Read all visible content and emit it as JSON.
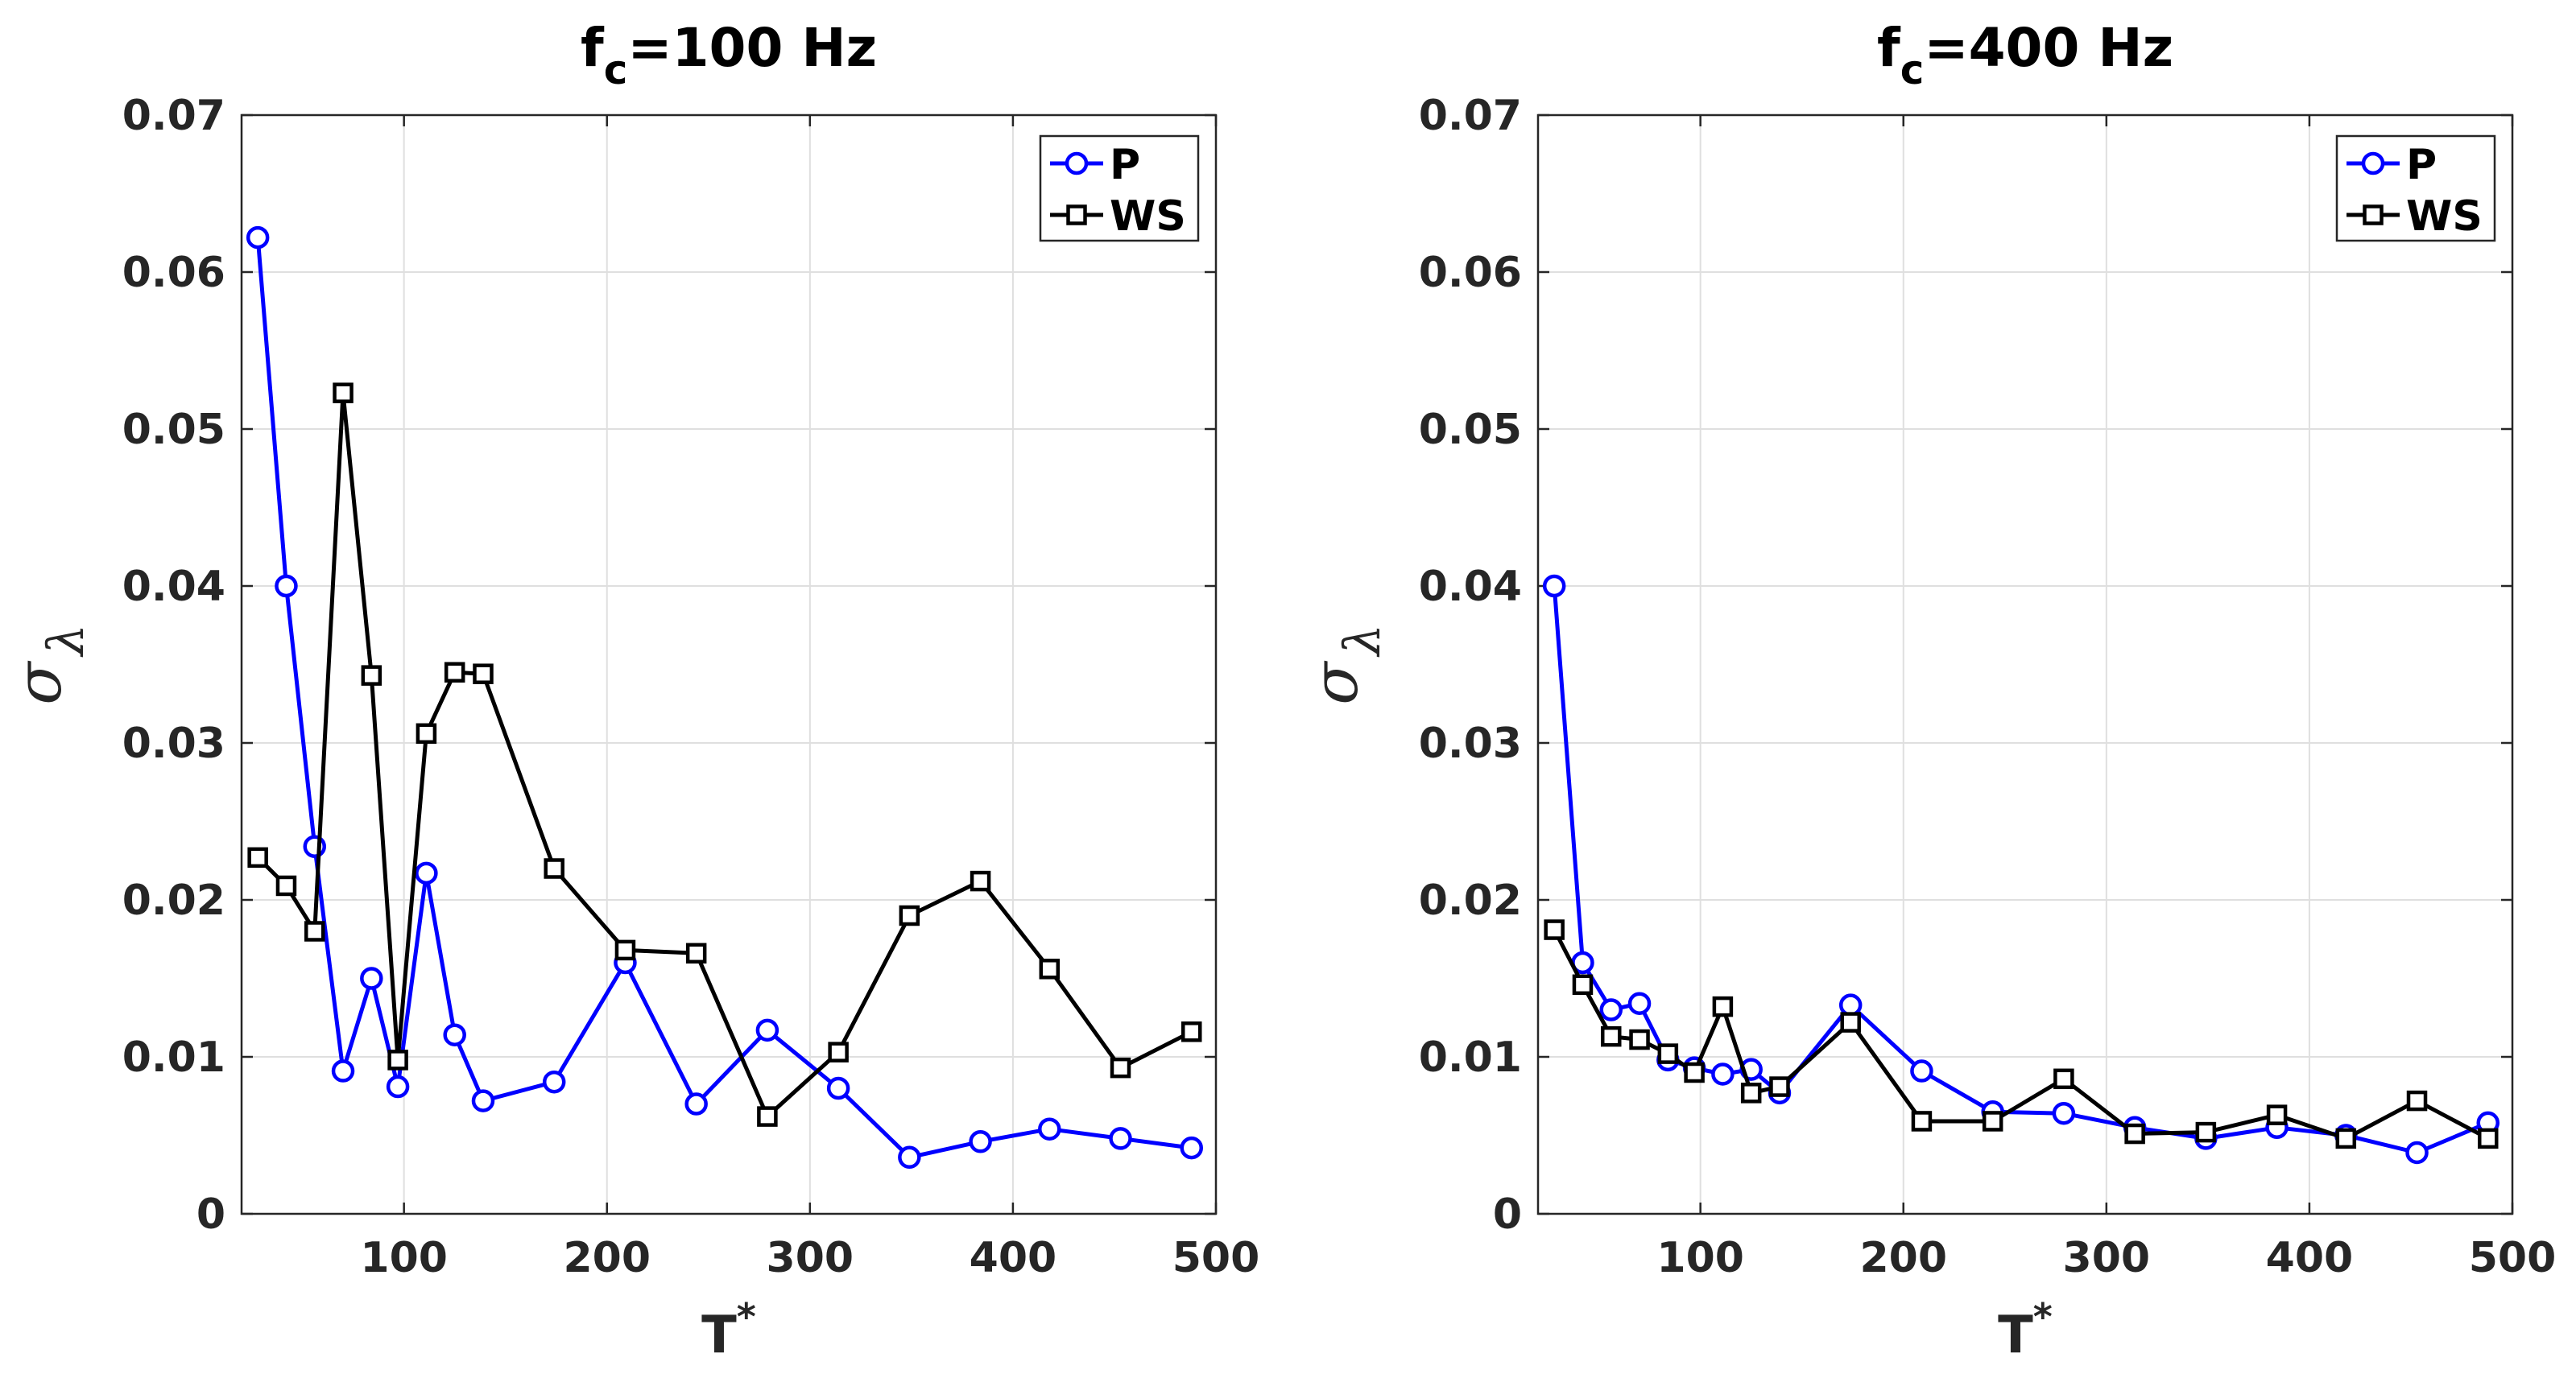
{
  "chart_data": [
    {
      "type": "line",
      "title": "f",
      "title_subscript": "c",
      "title_suffix": "=100 Hz",
      "xlabel": "T",
      "xlabel_superscript": "*",
      "ylabel": "σ",
      "ylabel_subscript": "λ",
      "xlim": [
        20,
        500
      ],
      "ylim": [
        0,
        0.07
      ],
      "xticks": [
        100,
        200,
        300,
        400,
        500
      ],
      "yticks": [
        0,
        0.01,
        0.02,
        0.03,
        0.04,
        0.05,
        0.06,
        0.07
      ],
      "ytick_labels": [
        "0",
        "0.01",
        "0.02",
        "0.03",
        "0.04",
        "0.05",
        "0.06",
        "0.07"
      ],
      "grid": true,
      "legend_position": "top-right",
      "series": [
        {
          "name": "P",
          "color": "#0000ff",
          "marker": "circle",
          "x": [
            28,
            42,
            56,
            70,
            84,
            97,
            111,
            125,
            139,
            174,
            209,
            244,
            279,
            314,
            349,
            384,
            418,
            453,
            488
          ],
          "y": [
            0.0622,
            0.04,
            0.0234,
            0.0091,
            0.015,
            0.0081,
            0.0217,
            0.0114,
            0.0072,
            0.0084,
            0.016,
            0.007,
            0.0117,
            0.008,
            0.0036,
            0.0046,
            0.0054,
            0.0048,
            0.0042
          ]
        },
        {
          "name": "WS",
          "color": "#000000",
          "marker": "square",
          "x": [
            28,
            42,
            56,
            70,
            84,
            97,
            111,
            125,
            139,
            174,
            209,
            244,
            279,
            314,
            349,
            384,
            418,
            453,
            488
          ],
          "y": [
            0.0227,
            0.0209,
            0.018,
            0.0523,
            0.0343,
            0.0098,
            0.0306,
            0.0345,
            0.0344,
            0.022,
            0.0168,
            0.0166,
            0.0062,
            0.0103,
            0.019,
            0.0212,
            0.0156,
            0.0093,
            0.0116
          ]
        }
      ]
    },
    {
      "type": "line",
      "title": "f",
      "title_subscript": "c",
      "title_suffix": "=400 Hz",
      "xlabel": "T",
      "xlabel_superscript": "*",
      "ylabel": "σ",
      "ylabel_subscript": "λ",
      "xlim": [
        20,
        500
      ],
      "ylim": [
        0,
        0.07
      ],
      "xticks": [
        100,
        200,
        300,
        400,
        500
      ],
      "yticks": [
        0,
        0.01,
        0.02,
        0.03,
        0.04,
        0.05,
        0.06,
        0.07
      ],
      "ytick_labels": [
        "0",
        "0.01",
        "0.02",
        "0.03",
        "0.04",
        "0.05",
        "0.06",
        "0.07"
      ],
      "grid": true,
      "legend_position": "top-right",
      "series": [
        {
          "name": "P",
          "color": "#0000ff",
          "marker": "circle",
          "x": [
            28,
            42,
            56,
            70,
            84,
            97,
            111,
            125,
            139,
            174,
            209,
            244,
            279,
            314,
            349,
            384,
            418,
            453,
            488
          ],
          "y": [
            0.04,
            0.016,
            0.013,
            0.0134,
            0.0098,
            0.0093,
            0.0089,
            0.0092,
            0.0077,
            0.0133,
            0.0091,
            0.0065,
            0.0064,
            0.0055,
            0.0048,
            0.0055,
            0.005,
            0.0039,
            0.0058
          ]
        },
        {
          "name": "WS",
          "color": "#000000",
          "marker": "square",
          "x": [
            28,
            42,
            56,
            70,
            84,
            97,
            111,
            125,
            139,
            174,
            209,
            244,
            279,
            314,
            349,
            384,
            418,
            453,
            488
          ],
          "y": [
            0.0181,
            0.0146,
            0.0113,
            0.0111,
            0.0102,
            0.009,
            0.0132,
            0.0077,
            0.0081,
            0.0122,
            0.0059,
            0.0059,
            0.0086,
            0.0051,
            0.0052,
            0.0063,
            0.0048,
            0.0072,
            0.0048
          ]
        }
      ]
    }
  ]
}
